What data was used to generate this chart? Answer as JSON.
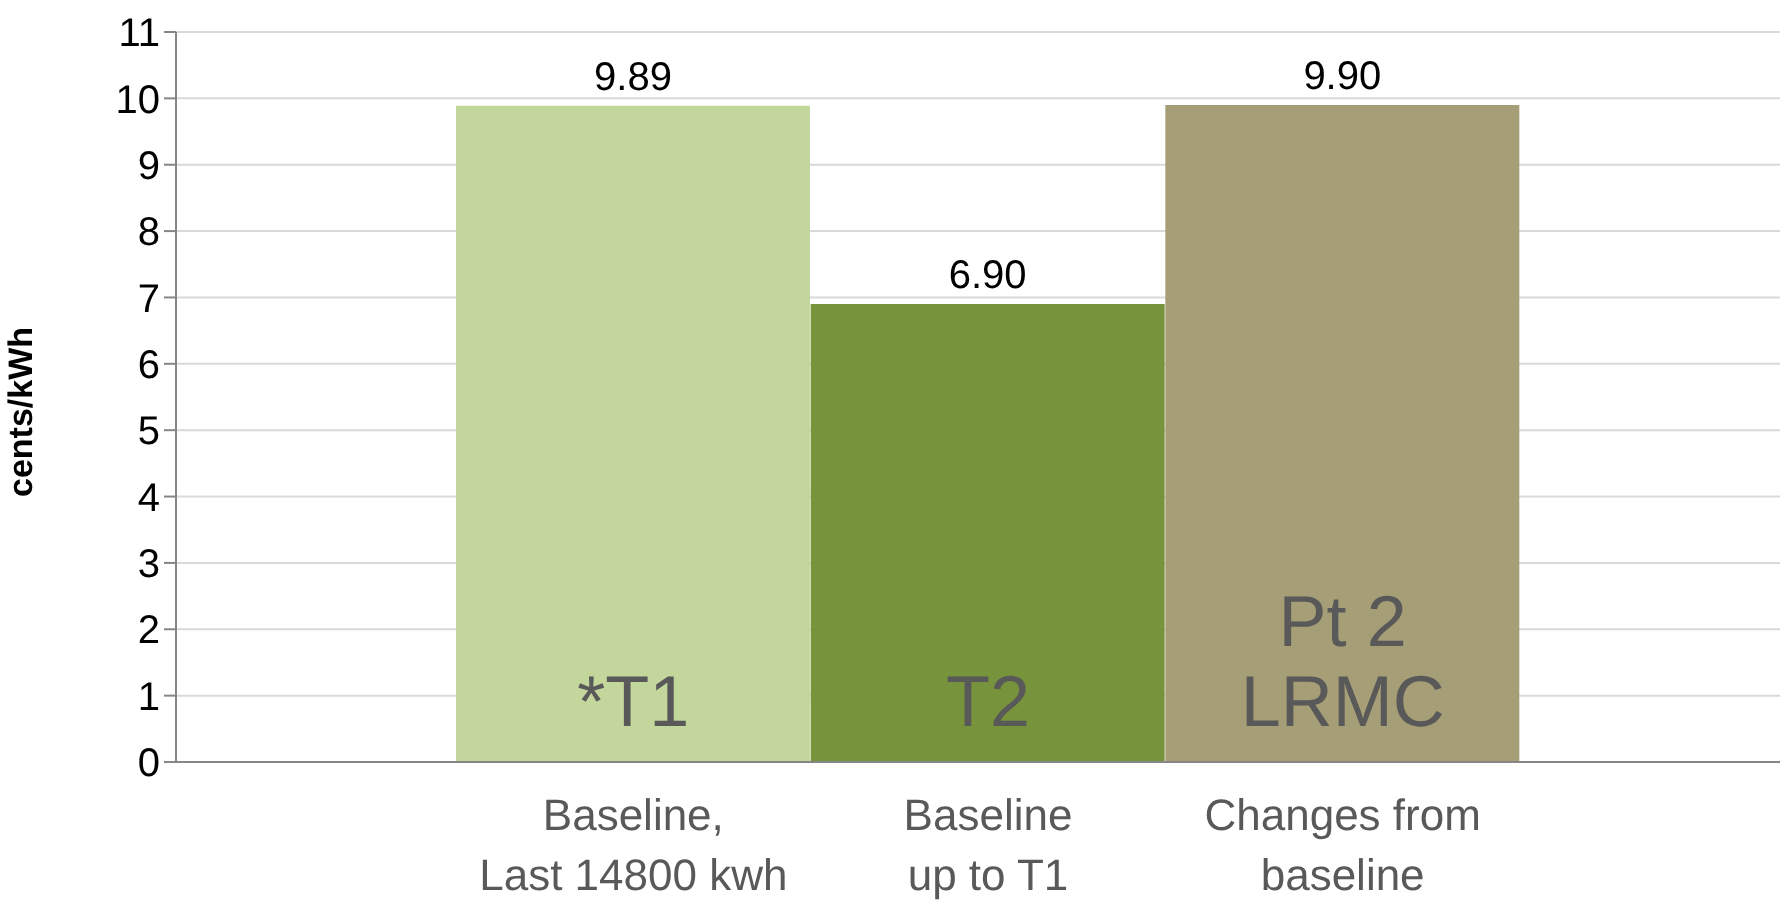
{
  "chart_data": {
    "type": "bar",
    "ylabel": "cents/kWh",
    "categories": [
      "Baseline,\nLast 14800 kwh",
      "Baseline\nup to T1",
      "Changes from\nbaseline"
    ],
    "values": [
      9.89,
      6.9,
      9.9
    ],
    "value_labels": [
      "9.89",
      "6.90",
      "9.90"
    ],
    "colors": [
      "#c3d69b",
      "#77933c",
      "#a59e76"
    ],
    "ylim": [
      0,
      11
    ],
    "yticks": [
      0,
      1,
      2,
      3,
      4,
      5,
      6,
      7,
      8,
      9,
      10,
      11
    ],
    "grid": "y",
    "annotations": [
      "*T1",
      "T2",
      "Pt 2\nLRMC"
    ]
  }
}
